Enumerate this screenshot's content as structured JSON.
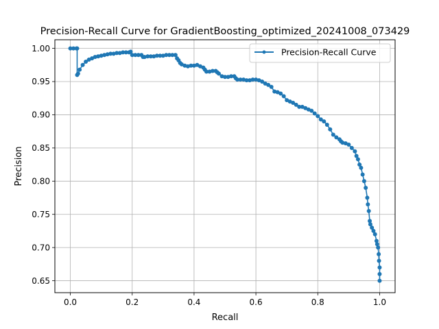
{
  "chart_data": {
    "type": "line",
    "title": "Precision-Recall Curve for GradientBoosting_optimized_20241008_073429",
    "xlabel": "Recall",
    "ylabel": "Precision",
    "xlim": [
      -0.05,
      1.05
    ],
    "ylim": [
      0.632,
      1.013
    ],
    "xticks": [
      0.0,
      0.2,
      0.4,
      0.6,
      0.8,
      1.0
    ],
    "xtick_labels": [
      "0.0",
      "0.2",
      "0.4",
      "0.6",
      "0.8",
      "1.0"
    ],
    "yticks": [
      0.65,
      0.7,
      0.75,
      0.8,
      0.85,
      0.9,
      0.95,
      1.0
    ],
    "ytick_labels": [
      "0.65",
      "0.70",
      "0.75",
      "0.80",
      "0.85",
      "0.90",
      "0.95",
      "1.00"
    ],
    "grid": true,
    "legend_position": "upper right",
    "series_color": "#1f77b4",
    "series": [
      {
        "name": "Precision-Recall Curve",
        "marker": "circle",
        "points": [
          [
            0.0,
            1.0
          ],
          [
            0.01,
            1.0
          ],
          [
            0.02,
            1.0
          ],
          [
            0.022,
            1.0
          ],
          [
            0.022,
            0.96
          ],
          [
            0.025,
            0.962
          ],
          [
            0.03,
            0.968
          ],
          [
            0.04,
            0.975
          ],
          [
            0.05,
            0.98
          ],
          [
            0.06,
            0.983
          ],
          [
            0.07,
            0.985
          ],
          [
            0.08,
            0.987
          ],
          [
            0.09,
            0.988
          ],
          [
            0.1,
            0.989
          ],
          [
            0.11,
            0.99
          ],
          [
            0.12,
            0.991
          ],
          [
            0.13,
            0.992
          ],
          [
            0.14,
            0.992
          ],
          [
            0.15,
            0.993
          ],
          [
            0.16,
            0.993
          ],
          [
            0.17,
            0.994
          ],
          [
            0.18,
            0.994
          ],
          [
            0.19,
            0.994
          ],
          [
            0.195,
            0.995
          ],
          [
            0.2,
            0.99
          ],
          [
            0.21,
            0.99
          ],
          [
            0.22,
            0.99
          ],
          [
            0.23,
            0.99
          ],
          [
            0.235,
            0.987
          ],
          [
            0.24,
            0.987
          ],
          [
            0.25,
            0.988
          ],
          [
            0.26,
            0.988
          ],
          [
            0.27,
            0.988
          ],
          [
            0.28,
            0.989
          ],
          [
            0.29,
            0.989
          ],
          [
            0.3,
            0.989
          ],
          [
            0.31,
            0.99
          ],
          [
            0.32,
            0.99
          ],
          [
            0.33,
            0.99
          ],
          [
            0.34,
            0.99
          ],
          [
            0.345,
            0.985
          ],
          [
            0.35,
            0.982
          ],
          [
            0.355,
            0.978
          ],
          [
            0.36,
            0.976
          ],
          [
            0.37,
            0.974
          ],
          [
            0.38,
            0.973
          ],
          [
            0.39,
            0.974
          ],
          [
            0.4,
            0.974
          ],
          [
            0.41,
            0.975
          ],
          [
            0.42,
            0.973
          ],
          [
            0.43,
            0.971
          ],
          [
            0.435,
            0.968
          ],
          [
            0.44,
            0.965
          ],
          [
            0.45,
            0.965
          ],
          [
            0.46,
            0.966
          ],
          [
            0.47,
            0.966
          ],
          [
            0.475,
            0.964
          ],
          [
            0.48,
            0.962
          ],
          [
            0.49,
            0.958
          ],
          [
            0.5,
            0.957
          ],
          [
            0.51,
            0.957
          ],
          [
            0.52,
            0.958
          ],
          [
            0.53,
            0.958
          ],
          [
            0.535,
            0.955
          ],
          [
            0.54,
            0.953
          ],
          [
            0.55,
            0.953
          ],
          [
            0.56,
            0.953
          ],
          [
            0.57,
            0.952
          ],
          [
            0.58,
            0.952
          ],
          [
            0.59,
            0.953
          ],
          [
            0.6,
            0.953
          ],
          [
            0.61,
            0.952
          ],
          [
            0.62,
            0.95
          ],
          [
            0.63,
            0.947
          ],
          [
            0.64,
            0.945
          ],
          [
            0.65,
            0.942
          ],
          [
            0.66,
            0.935
          ],
          [
            0.67,
            0.934
          ],
          [
            0.68,
            0.932
          ],
          [
            0.69,
            0.928
          ],
          [
            0.7,
            0.922
          ],
          [
            0.71,
            0.92
          ],
          [
            0.72,
            0.918
          ],
          [
            0.73,
            0.915
          ],
          [
            0.74,
            0.912
          ],
          [
            0.75,
            0.912
          ],
          [
            0.76,
            0.91
          ],
          [
            0.77,
            0.908
          ],
          [
            0.78,
            0.906
          ],
          [
            0.79,
            0.902
          ],
          [
            0.8,
            0.898
          ],
          [
            0.81,
            0.893
          ],
          [
            0.82,
            0.89
          ],
          [
            0.83,
            0.885
          ],
          [
            0.84,
            0.878
          ],
          [
            0.85,
            0.87
          ],
          [
            0.86,
            0.866
          ],
          [
            0.87,
            0.863
          ],
          [
            0.875,
            0.86
          ],
          [
            0.88,
            0.858
          ],
          [
            0.89,
            0.857
          ],
          [
            0.9,
            0.855
          ],
          [
            0.91,
            0.85
          ],
          [
            0.92,
            0.845
          ],
          [
            0.925,
            0.838
          ],
          [
            0.93,
            0.833
          ],
          [
            0.935,
            0.825
          ],
          [
            0.94,
            0.82
          ],
          [
            0.945,
            0.81
          ],
          [
            0.95,
            0.8
          ],
          [
            0.955,
            0.79
          ],
          [
            0.96,
            0.775
          ],
          [
            0.962,
            0.765
          ],
          [
            0.965,
            0.755
          ],
          [
            0.968,
            0.74
          ],
          [
            0.97,
            0.735
          ],
          [
            0.975,
            0.73
          ],
          [
            0.98,
            0.725
          ],
          [
            0.985,
            0.72
          ],
          [
            0.99,
            0.71
          ],
          [
            0.992,
            0.705
          ],
          [
            0.995,
            0.7
          ],
          [
            0.997,
            0.69
          ],
          [
            0.998,
            0.68
          ],
          [
            1.0,
            0.67
          ],
          [
            1.0,
            0.66
          ],
          [
            1.0,
            0.65
          ]
        ]
      }
    ]
  }
}
